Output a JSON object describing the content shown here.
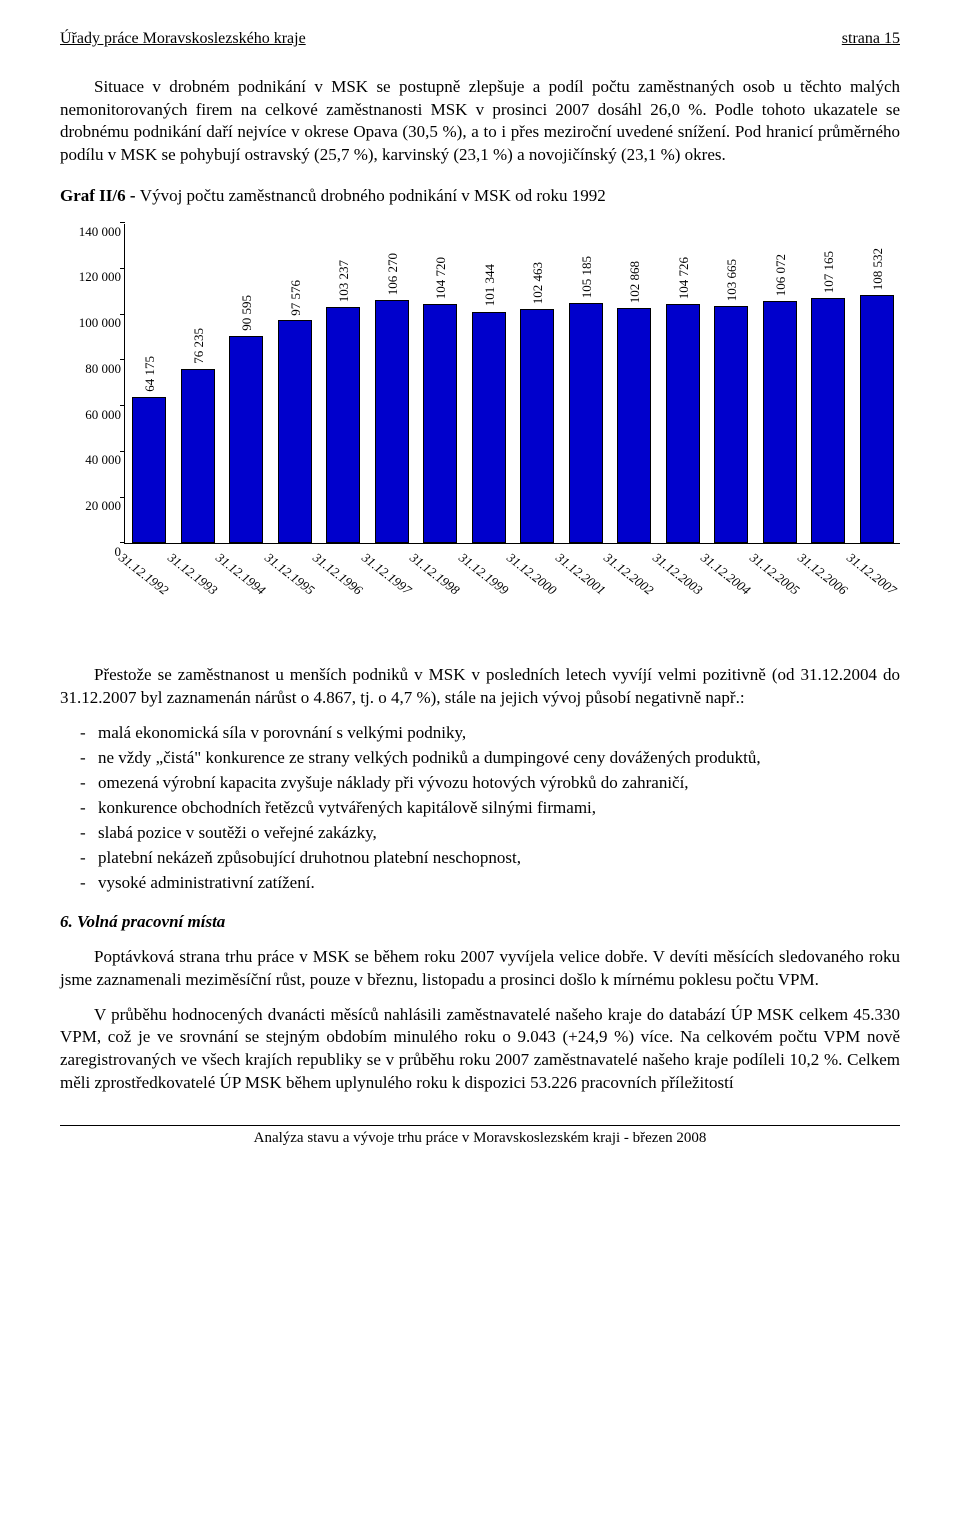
{
  "header": {
    "left": "Úřady práce Moravskoslezského kraje",
    "right": "strana 15"
  },
  "para1": "Situace v drobném podnikání v MSK se postupně zlepšuje a podíl počtu zaměstnaných osob u těchto malých nemonitorovaných firem na celkové zaměstnanosti MSK v prosinci 2007 dosáhl 26,0 %. Podle tohoto ukazatele se drobnému podnikání daří nejvíce v okrese Opava (30,5 %), a to i přes meziroční uvedené snížení. Pod hranicí průměrného podílu v MSK se pohybují ostravský (25,7 %), karvinský (23,1 %) a novojičínský (23,1 %) okres.",
  "chart": {
    "title_bold": "Graf II/6 - ",
    "title_rest": "Vývoj počtu zaměstnanců drobného podnikání v MSK od roku 1992",
    "ylim": [
      0,
      140000
    ],
    "ytick_step": 20000,
    "yticks": [
      "0",
      "20 000",
      "40 000",
      "60 000",
      "80 000",
      "100 000",
      "120 000",
      "140 000"
    ],
    "bar_color": "#0000cc",
    "bar_border": "#000000",
    "categories": [
      "31.12.1992",
      "31.12.1993",
      "31.12.1994",
      "31.12.1995",
      "31.12.1996",
      "31.12.1997",
      "31.12.1998",
      "31.12.1999",
      "31.12.2000",
      "31.12.2001",
      "31.12.2002",
      "31.12.2003",
      "31.12.2004",
      "31.12.2005",
      "31.12.2006",
      "31.12.2007"
    ],
    "values": [
      64175,
      76235,
      90595,
      97576,
      103237,
      106270,
      104720,
      101344,
      102463,
      105185,
      102868,
      104726,
      103665,
      106072,
      107165,
      108532
    ],
    "value_labels": [
      "64 175",
      "76 235",
      "90 595",
      "97 576",
      "103 237",
      "106 270",
      "104 720",
      "101 344",
      "102 463",
      "105 185",
      "102 868",
      "104 726",
      "103 665",
      "106 072",
      "107 165",
      "108 532"
    ]
  },
  "para2": "Přestože se zaměstnanost u menších podniků v MSK v posledních letech vyvíjí velmi pozitivně (od 31.12.2004 do 31.12.2007 byl zaznamenán nárůst o 4.867, tj. o 4,7 %), stále na jejich vývoj působí negativně např.:",
  "bullets": [
    "malá ekonomická síla v porovnání s velkými podniky,",
    "ne vždy „čistá\" konkurence ze strany velkých podniků a dumpingové ceny dovážených produktů,",
    "omezená výrobní kapacita zvyšuje náklady při vývozu hotových výrobků do zahraničí,",
    "konkurence obchodních řetězců vytvářených kapitálově silnými firmami,",
    "slabá pozice v soutěži o veřejné zakázky,",
    "platební nekázeň způsobující druhotnou platební neschopnost,",
    "vysoké administrativní zatížení."
  ],
  "section6": {
    "title": "6. Volná pracovní místa",
    "p1": "Poptávková strana trhu práce v MSK se během roku 2007 vyvíjela velice dobře. V devíti měsících sledovaného roku jsme zaznamenali meziměsíční růst, pouze v březnu, listopadu a prosinci došlo k mírnému poklesu počtu VPM.",
    "p2": "V průběhu hodnocených dvanácti měsíců nahlásili zaměstnavatelé našeho kraje do databází ÚP MSK celkem 45.330 VPM, což je ve srovnání se stejným obdobím minulého roku o 9.043 (+24,9 %) více. Na celkovém počtu VPM nově zaregistrovaných ve všech krajích republiky se v průběhu roku 2007 zaměstnavatelé našeho kraje podíleli 10,2 %. Celkem měli zprostředkovatelé ÚP MSK během uplynulého roku k dispozici 53.226 pracovních příležitostí"
  },
  "footer": "Analýza stavu a vývoje trhu práce v Moravskoslezském kraji - březen 2008"
}
